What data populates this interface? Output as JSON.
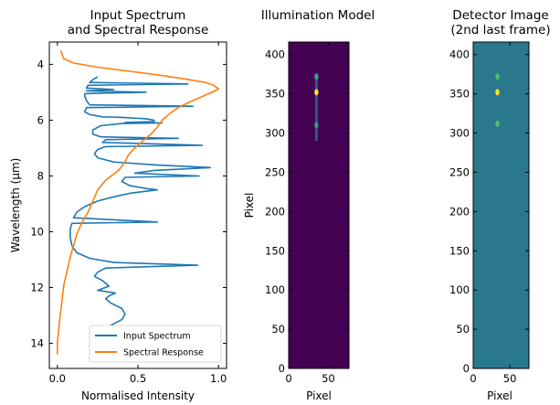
{
  "chart_data": [
    {
      "type": "line",
      "title_lines": [
        "Input Spectrum",
        "and Spectral Response"
      ],
      "xlabel": "Normalised Intensity",
      "ylabel": "Wavelength (μm)",
      "xlim": [
        -0.05,
        1.05
      ],
      "ylim": [
        14.9,
        3.2
      ],
      "y_inverted": true,
      "xticks": [
        0.0,
        0.5,
        1.0
      ],
      "xtick_labels": [
        "0.0",
        "0.5",
        "1.0"
      ],
      "yticks": [
        4,
        6,
        8,
        10,
        12,
        14
      ],
      "ytick_labels": [
        "4",
        "6",
        "8",
        "10",
        "12",
        "14"
      ],
      "legend_position": "lower-right",
      "colors": {
        "Input Spectrum": "#1f77b4",
        "Spectral Response": "#ff7f0e"
      },
      "series": [
        {
          "name": "Input Spectrum",
          "points": [
            [
              0.25,
              4.45
            ],
            [
              0.22,
              4.55
            ],
            [
              0.2,
              4.65
            ],
            [
              0.81,
              4.7
            ],
            [
              0.19,
              4.75
            ],
            [
              0.18,
              4.85
            ],
            [
              0.35,
              4.9
            ],
            [
              0.18,
              4.95
            ],
            [
              0.55,
              5.0
            ],
            [
              0.17,
              5.05
            ],
            [
              0.17,
              5.15
            ],
            [
              0.18,
              5.3
            ],
            [
              0.2,
              5.45
            ],
            [
              0.84,
              5.5
            ],
            [
              0.18,
              5.55
            ],
            [
              0.17,
              5.7
            ],
            [
              0.2,
              5.8
            ],
            [
              0.28,
              5.88
            ],
            [
              0.4,
              5.9
            ],
            [
              0.55,
              5.95
            ],
            [
              0.6,
              6.0
            ],
            [
              0.6,
              6.05
            ],
            [
              0.42,
              6.08
            ],
            [
              0.65,
              6.1
            ],
            [
              0.4,
              6.12
            ],
            [
              0.27,
              6.2
            ],
            [
              0.22,
              6.35
            ],
            [
              0.22,
              6.5
            ],
            [
              0.27,
              6.6
            ],
            [
              0.75,
              6.65
            ],
            [
              0.3,
              6.7
            ],
            [
              0.28,
              6.8
            ],
            [
              0.9,
              6.9
            ],
            [
              0.3,
              6.95
            ],
            [
              0.25,
              7.05
            ],
            [
              0.23,
              7.2
            ],
            [
              0.25,
              7.35
            ],
            [
              0.35,
              7.5
            ],
            [
              0.6,
              7.6
            ],
            [
              0.95,
              7.7
            ],
            [
              0.6,
              7.8
            ],
            [
              0.48,
              7.9
            ],
            [
              0.88,
              8.0
            ],
            [
              0.42,
              8.05
            ],
            [
              0.4,
              8.2
            ],
            [
              0.45,
              8.35
            ],
            [
              0.55,
              8.45
            ],
            [
              0.62,
              8.5
            ],
            [
              0.55,
              8.55
            ],
            [
              0.45,
              8.62
            ],
            [
              0.35,
              8.75
            ],
            [
              0.25,
              8.9
            ],
            [
              0.17,
              9.1
            ],
            [
              0.12,
              9.3
            ],
            [
              0.1,
              9.5
            ],
            [
              0.62,
              9.65
            ],
            [
              0.09,
              9.7
            ],
            [
              0.08,
              9.9
            ],
            [
              0.08,
              10.2
            ],
            [
              0.09,
              10.5
            ],
            [
              0.12,
              10.75
            ],
            [
              0.2,
              10.95
            ],
            [
              0.35,
              11.1
            ],
            [
              0.87,
              11.2
            ],
            [
              0.3,
              11.3
            ],
            [
              0.25,
              11.45
            ],
            [
              0.23,
              11.6
            ],
            [
              0.28,
              11.75
            ],
            [
              0.32,
              11.95
            ],
            [
              0.25,
              12.1
            ],
            [
              0.36,
              12.2
            ],
            [
              0.32,
              12.3
            ],
            [
              0.3,
              12.4
            ],
            [
              0.33,
              12.55
            ],
            [
              0.4,
              12.75
            ],
            [
              0.42,
              12.95
            ],
            [
              0.4,
              13.15
            ],
            [
              0.35,
              13.3
            ],
            [
              0.3,
              13.45
            ],
            [
              0.28,
              13.5
            ]
          ]
        },
        {
          "name": "Spectral Response",
          "points": [
            [
              0.02,
              3.5
            ],
            [
              0.04,
              3.8
            ],
            [
              0.1,
              3.95
            ],
            [
              0.25,
              4.1
            ],
            [
              0.45,
              4.25
            ],
            [
              0.65,
              4.4
            ],
            [
              0.82,
              4.55
            ],
            [
              0.92,
              4.65
            ],
            [
              0.97,
              4.75
            ],
            [
              1.0,
              4.88
            ],
            [
              0.96,
              5.0
            ],
            [
              0.9,
              5.15
            ],
            [
              0.82,
              5.35
            ],
            [
              0.75,
              5.55
            ],
            [
              0.7,
              5.75
            ],
            [
              0.65,
              6.0
            ],
            [
              0.62,
              6.25
            ],
            [
              0.58,
              6.5
            ],
            [
              0.53,
              6.75
            ],
            [
              0.48,
              7.0
            ],
            [
              0.44,
              7.25
            ],
            [
              0.42,
              7.5
            ],
            [
              0.38,
              7.8
            ],
            [
              0.3,
              8.15
            ],
            [
              0.25,
              8.5
            ],
            [
              0.22,
              8.9
            ],
            [
              0.19,
              9.3
            ],
            [
              0.15,
              9.7
            ],
            [
              0.12,
              10.1
            ],
            [
              0.1,
              10.5
            ],
            [
              0.08,
              10.9
            ],
            [
              0.06,
              11.4
            ],
            [
              0.04,
              11.9
            ],
            [
              0.03,
              12.4
            ],
            [
              0.02,
              12.9
            ],
            [
              0.01,
              13.4
            ],
            [
              0.0,
              14.0
            ],
            [
              0.0,
              14.4
            ]
          ]
        }
      ]
    },
    {
      "type": "heatmap",
      "title": "Illumination Model",
      "xlabel": "Pixel",
      "ylabel": "Pixel",
      "xlim": [
        0,
        76
      ],
      "ylim": [
        0,
        416
      ],
      "xticks": [
        0,
        50
      ],
      "xtick_labels": [
        "0",
        "50"
      ],
      "yticks": [
        0,
        50,
        100,
        150,
        200,
        250,
        300,
        350,
        400
      ],
      "ytick_labels": [
        "0",
        "50",
        "100",
        "150",
        "200",
        "250",
        "300",
        "350",
        "400"
      ],
      "colormap": "viridis",
      "background_color": "#440154",
      "features": [
        {
          "x": 35,
          "y": 352,
          "intensity": 1.0
        },
        {
          "x": 35,
          "y": 372,
          "intensity": 0.6
        },
        {
          "x": 35,
          "y": 310,
          "intensity": 0.55
        }
      ],
      "streak": {
        "x": 35,
        "y_from": 290,
        "y_to": 375,
        "intensity": 0.35
      }
    },
    {
      "type": "heatmap",
      "title_lines": [
        "Detector Image",
        "(2nd last frame)"
      ],
      "xlabel": "Pixel",
      "ylabel": "",
      "xlim": [
        0,
        76
      ],
      "ylim": [
        0,
        416
      ],
      "xticks": [
        0,
        50
      ],
      "xtick_labels": [
        "0",
        "50"
      ],
      "yticks": [
        0,
        50,
        100,
        150,
        200,
        250,
        300,
        350,
        400
      ],
      "ytick_labels": [
        "0",
        "50",
        "100",
        "150",
        "200",
        "250",
        "300",
        "350",
        "400"
      ],
      "colormap": "viridis",
      "background_color": "#2a788e",
      "features": [
        {
          "x": 33,
          "y": 352,
          "intensity": 1.0
        },
        {
          "x": 33,
          "y": 372,
          "intensity": 0.7
        },
        {
          "x": 33,
          "y": 312,
          "intensity": 0.7
        }
      ],
      "streak": {
        "x": 33,
        "y_from": 280,
        "y_to": 375,
        "intensity": 0.4
      }
    }
  ]
}
